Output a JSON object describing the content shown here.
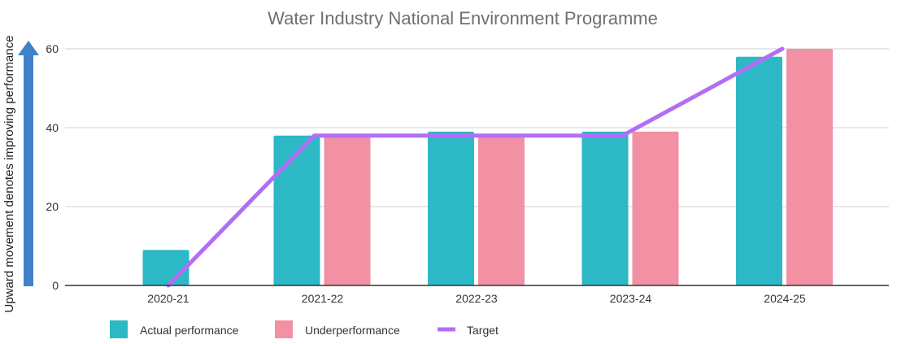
{
  "chart_data": {
    "type": "bar",
    "title": "Water Industry National Environment Programme",
    "ylabel": "Upward movement denotes improving performance",
    "xlabel": "",
    "categories": [
      "2020-21",
      "2021-22",
      "2022-23",
      "2023-24",
      "2024-25"
    ],
    "ylim": [
      0,
      60
    ],
    "yticks": [
      0,
      20,
      40,
      60
    ],
    "grid": true,
    "legend_position": "bottom-left",
    "series": [
      {
        "name": "Actual performance",
        "type": "bar",
        "color": "#2db8c5",
        "values": [
          9,
          38,
          39,
          39,
          58
        ]
      },
      {
        "name": "Underperformance",
        "type": "bar",
        "color": "#f291a3",
        "values": [
          null,
          38,
          38,
          39,
          60
        ]
      },
      {
        "name": "Target",
        "type": "line",
        "color": "#b36ef5",
        "values": [
          0,
          38,
          38,
          38,
          60
        ]
      }
    ],
    "arrow_color": "#3f82c9"
  }
}
